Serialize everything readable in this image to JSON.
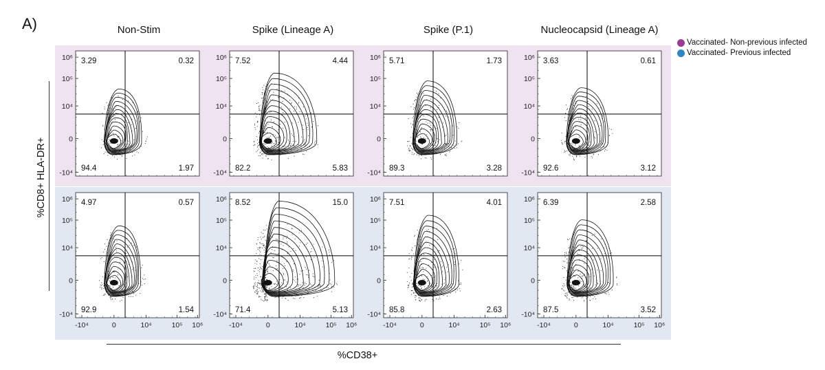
{
  "panel_label": "A)",
  "colors": {
    "non_previous_infected": "#9a3c92",
    "previous_infected": "#2f86c0",
    "row_bg_top": "#eee3ee",
    "row_bg_bottom": "#e1e8f1"
  },
  "legend": [
    {
      "label": "Vaccinated- Non-previous infected",
      "color": "#9a3c92"
    },
    {
      "label": "Vaccinated- Previous infected",
      "color": "#2f86c0"
    }
  ],
  "chart_data": {
    "type": "scatter",
    "subtype": "flow-cytometry-contour-quadrants",
    "title": "",
    "xlabel": "%CD38+",
    "ylabel": "%CD8+ HLA-DR+",
    "x_ticks": [
      "-10⁴",
      "0",
      "10⁴",
      "10⁵",
      "10⁶"
    ],
    "y_ticks": [
      "10⁶",
      "10⁵",
      "10⁴",
      "0",
      "-10⁴"
    ],
    "columns": [
      "Non-Stim",
      "Spike (Lineage A)",
      "Spike (P.1)",
      "Nucleocapsid (Lineage A)"
    ],
    "rows": [
      "Vaccinated- Non-previous infected",
      "Vaccinated- Previous infected"
    ],
    "quadrant_order": [
      "upper_left",
      "upper_right",
      "lower_left",
      "lower_right"
    ],
    "quadrants": [
      [
        {
          "upper_left": "3.29",
          "upper_right": "0.32",
          "lower_left": "94.4",
          "lower_right": "1.97"
        },
        {
          "upper_left": "7.52",
          "upper_right": "4.44",
          "lower_left": "82.2",
          "lower_right": "5.83"
        },
        {
          "upper_left": "5.71",
          "upper_right": "1.73",
          "lower_left": "89.3",
          "lower_right": "3.28"
        },
        {
          "upper_left": "3.63",
          "upper_right": "0.61",
          "lower_left": "92.6",
          "lower_right": "3.12"
        }
      ],
      [
        {
          "upper_left": "4.97",
          "upper_right": "0.57",
          "lower_left": "92.9",
          "lower_right": "1.54"
        },
        {
          "upper_left": "8.52",
          "upper_right": "15.0",
          "lower_left": "71.4",
          "lower_right": "5.13"
        },
        {
          "upper_left": "7.51",
          "upper_right": "4.01",
          "lower_left": "85.8",
          "lower_right": "2.63"
        },
        {
          "upper_left": "6.39",
          "upper_right": "2.58",
          "lower_left": "87.5",
          "lower_right": "3.52"
        }
      ]
    ],
    "legend_placement": "top-right"
  }
}
